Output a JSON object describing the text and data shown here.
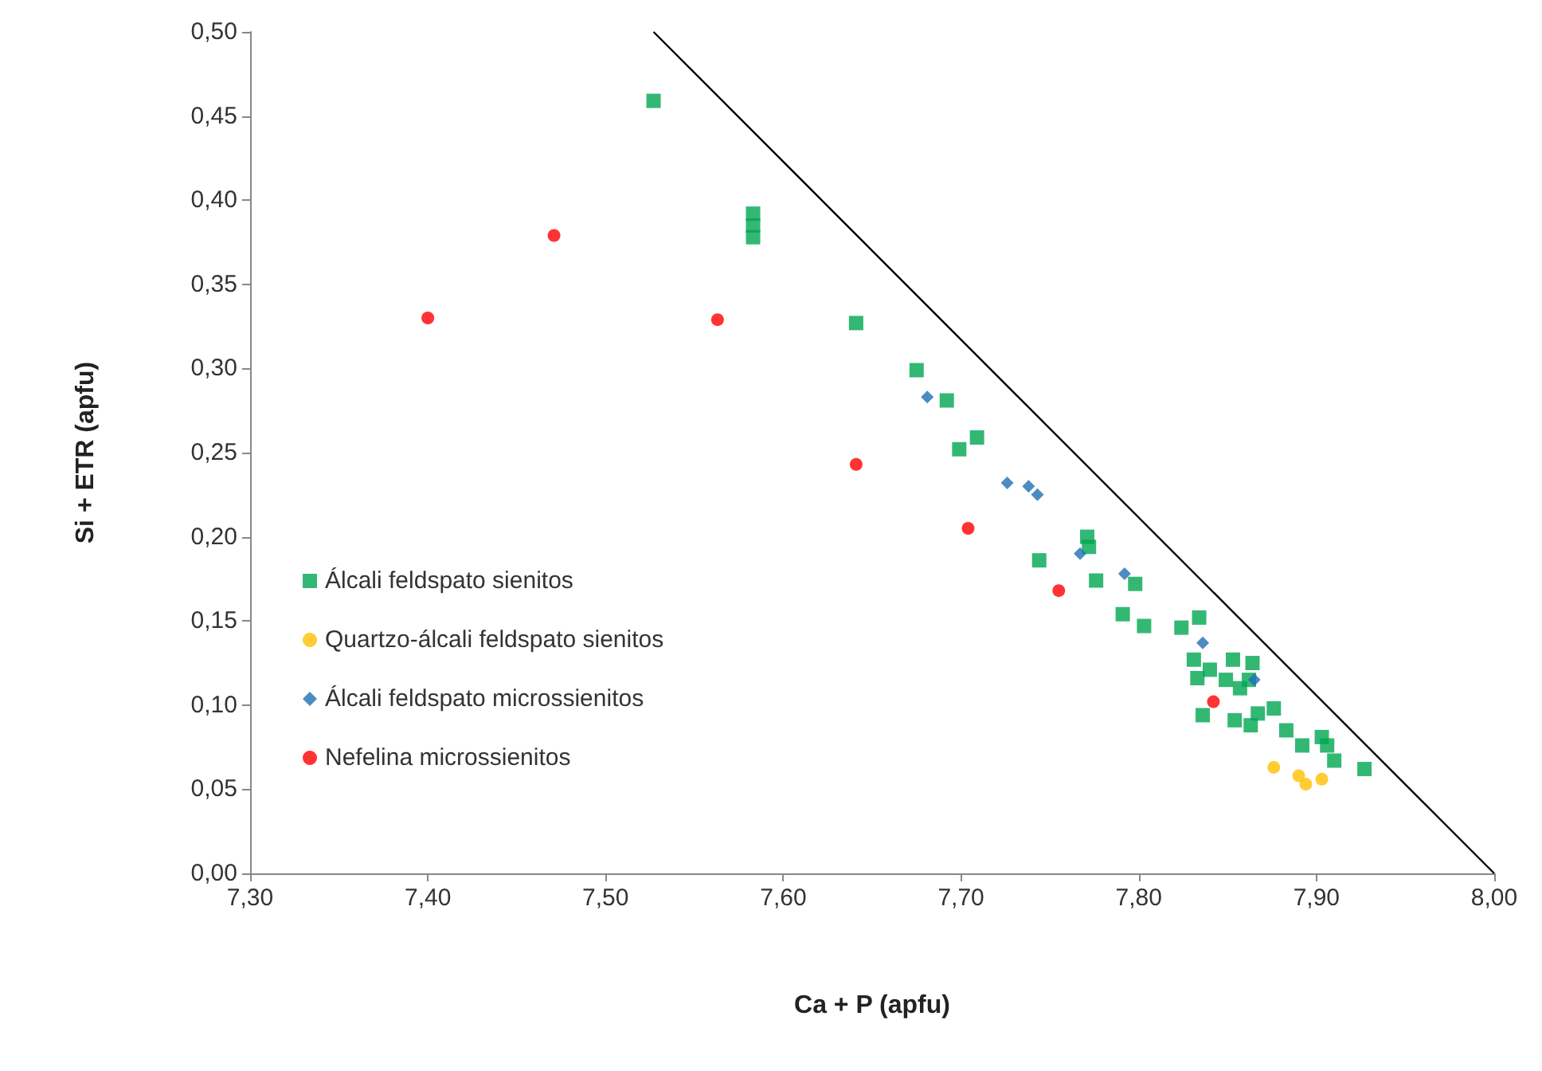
{
  "chart_data": {
    "type": "scatter",
    "xlabel": "Ca + P (apfu)",
    "ylabel": "Si + ETR (apfu)",
    "xlim": [
      7.3,
      8.0
    ],
    "xticks": [
      {
        "value": 7.3,
        "label": "7,30"
      },
      {
        "value": 7.4,
        "label": "7,40"
      },
      {
        "value": 7.5,
        "label": "7,50"
      },
      {
        "value": 7.6,
        "label": "7,60"
      },
      {
        "value": 7.7,
        "label": "7,70"
      },
      {
        "value": 7.8,
        "label": "7,80"
      },
      {
        "value": 7.9,
        "label": "7,90"
      },
      {
        "value": 8.0,
        "label": "8,00"
      }
    ],
    "ylim": [
      0,
      0.5
    ],
    "yticks": [
      {
        "value": 0,
        "label": "0,00"
      },
      {
        "value": 0.05,
        "label": "0,05"
      },
      {
        "value": 0.1,
        "label": "0,10"
      },
      {
        "value": 0.15,
        "label": "0,15"
      },
      {
        "value": 0.2,
        "label": "0,20"
      },
      {
        "value": 0.25,
        "label": "0,25"
      },
      {
        "value": 0.3,
        "label": "0,30"
      },
      {
        "value": 0.35,
        "label": "0,35"
      },
      {
        "value": 0.4,
        "label": "0,40"
      },
      {
        "value": 0.45,
        "label": "0,45"
      },
      {
        "value": 0.5,
        "label": "0,50"
      }
    ],
    "grid": false,
    "legend": "bottom left",
    "series": [
      {
        "name": "Álcali feldspato sienitos",
        "color": "#00a651",
        "marker": "square",
        "x": [
          7.527,
          7.583,
          7.583,
          7.583,
          7.641,
          7.675,
          7.692,
          7.709,
          7.699,
          7.771,
          7.772,
          7.744,
          7.776,
          7.798,
          7.791,
          7.803,
          7.824,
          7.834,
          7.831,
          7.842,
          7.853,
          7.864,
          7.833,
          7.849,
          7.862,
          7.84,
          7.857,
          7.836,
          7.854,
          7.867,
          7.876,
          7.863,
          7.883,
          7.892,
          7.903,
          7.906,
          7.91,
          7.927
        ],
        "values": [
          0.459,
          0.392,
          0.385,
          0.378,
          0.327,
          0.299,
          0.281,
          0.259,
          0.252,
          0.2,
          0.194,
          0.186,
          0.174,
          0.172,
          0.154,
          0.147,
          0.146,
          0.152,
          0.127,
          null,
          0.127,
          0.125,
          0.116,
          0.115,
          0.115,
          0.121,
          0.11,
          0.094,
          0.091,
          0.095,
          0.098,
          0.088,
          0.085,
          0.076,
          0.081,
          0.076,
          0.067,
          0.062
        ]
      },
      {
        "name": "Quartzo-álcali feldspato sienitos",
        "color": "#ffc000",
        "marker": "circle",
        "x": [
          7.876,
          7.89,
          7.894,
          7.903
        ],
        "values": [
          0.063,
          0.058,
          0.053,
          0.056
        ]
      },
      {
        "name": "Álcali feldspato microssienitos",
        "color": "#1f6fb4",
        "marker": "diamond",
        "x": [
          7.681,
          7.726,
          7.738,
          7.743,
          7.767,
          7.792,
          7.836,
          7.865
        ],
        "values": [
          0.283,
          0.232,
          0.23,
          0.225,
          0.19,
          0.178,
          0.137,
          0.115
        ]
      },
      {
        "name": "Nefelina microssienitos",
        "color": "#ff0000",
        "marker": "circle",
        "x": [
          7.4,
          7.471,
          7.563,
          7.641,
          7.704,
          7.755,
          7.842
        ],
        "values": [
          0.33,
          0.379,
          0.329,
          0.243,
          0.205,
          0.168,
          0.102
        ]
      },
      {
        "type": "line",
        "color": "#000000",
        "marker": "none",
        "x": [
          7.527,
          8.0
        ],
        "values": [
          0.5,
          0
        ]
      }
    ]
  }
}
